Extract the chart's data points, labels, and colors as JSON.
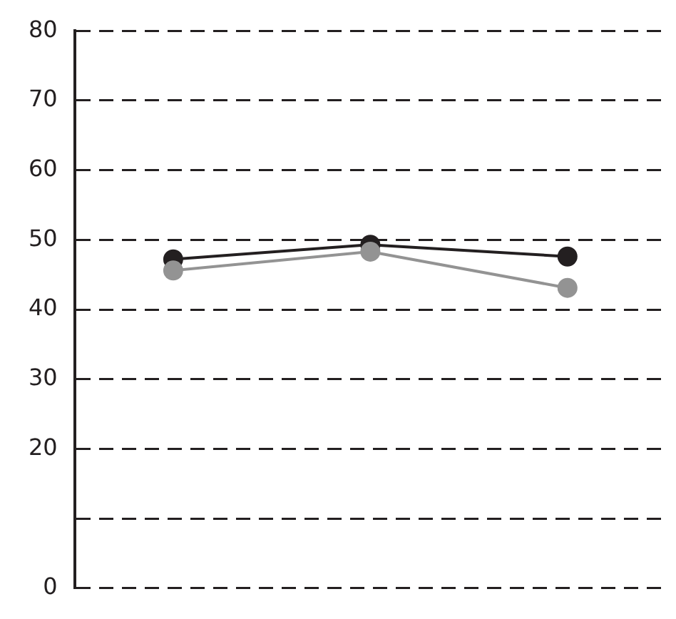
{
  "chart_data": {
    "type": "line",
    "categories": [
      null,
      null,
      null
    ],
    "series": [
      {
        "color": "#231f20",
        "values": [
          47.2,
          49.3,
          47.6
        ]
      },
      {
        "color": "#939393",
        "values": [
          45.6,
          48.3,
          43.1
        ]
      }
    ],
    "ylim": [
      0,
      80
    ],
    "yticks": [
      0,
      {
        "value": 10,
        "label": null
      },
      20,
      30,
      40,
      50,
      60,
      70,
      80
    ],
    "grid": "y",
    "marker": "circle",
    "line_style": "solid",
    "tick_labels": "y",
    "legend": false
  }
}
